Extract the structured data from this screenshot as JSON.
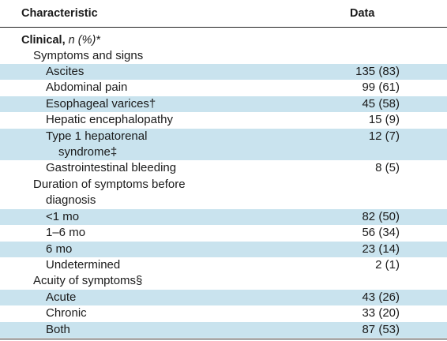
{
  "header": {
    "characteristic": "Characteristic",
    "data": "Data"
  },
  "section": {
    "label_main": "Clinical, ",
    "label_italic": "n",
    "label_tail": " (%)*"
  },
  "groups": {
    "symptoms_signs": "Symptoms and signs",
    "duration": "Duration of symptoms before diagnosis",
    "acuity": "Acuity of symptoms§"
  },
  "rows": [
    {
      "label": "Ascites",
      "value": "135 (83)"
    },
    {
      "label": "Abdominal pain",
      "value": "99 (61)"
    },
    {
      "label": "Esophageal varices†",
      "value": "45 (58)"
    },
    {
      "label": "Hepatic encephalopathy",
      "value": "15 (9)"
    },
    {
      "label": "Type 1 hepatorenal syndrome‡",
      "value": "12 (7)"
    },
    {
      "label": "Gastrointestinal bleeding",
      "value": "8 (5)"
    },
    {
      "label": "<1 mo",
      "value": "82 (50)"
    },
    {
      "label": "1–6 mo",
      "value": "56 (34)"
    },
    {
      "label": "6 mo",
      "value": "23 (14)"
    },
    {
      "label": "Undetermined",
      "value": "2 (1)"
    },
    {
      "label": "Acute",
      "value": "43 (26)"
    },
    {
      "label": "Chronic",
      "value": "33 (20)"
    },
    {
      "label": "Both",
      "value": "87 (53)"
    }
  ],
  "colors": {
    "shade": "#c9e3ee",
    "rule": "#222222"
  }
}
